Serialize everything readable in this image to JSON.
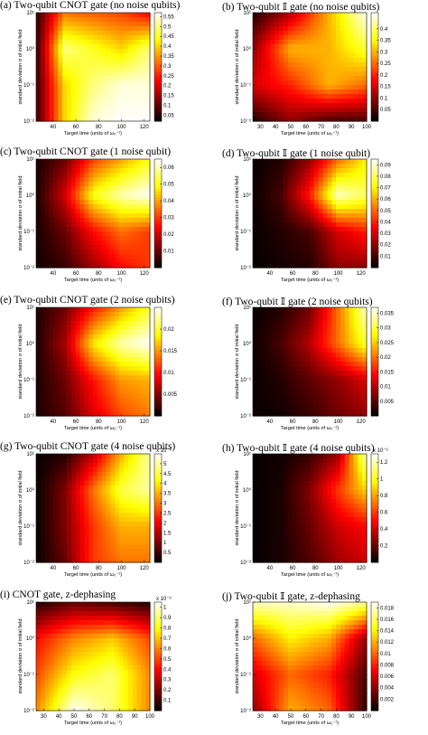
{
  "x_label": "Target time (units of ω₀⁻¹)",
  "y_label": "standard deviation σ of initial field",
  "y_ticks": [
    "10¹",
    "10⁰",
    "10⁻¹",
    "10⁻²"
  ],
  "colormap": "hot",
  "chart_data": [
    {
      "id": "a",
      "type": "heatmap",
      "title": "(a) Two-qubit CNOT gate (no noise qubits)",
      "x_ticks": [
        40,
        60,
        80,
        100,
        120
      ],
      "xlim": [
        25,
        125
      ],
      "colorbar_ticks": [
        "0.55",
        "0.5",
        "0.45",
        "0.4",
        "0.35",
        "0.3",
        "0.25",
        "0.2",
        "0.15",
        "0.1",
        "0.05"
      ],
      "clim": [
        0.02,
        0.57
      ],
      "colorbar_exponent": "",
      "x": [
        25,
        50,
        75,
        100,
        125
      ],
      "y": [
        10,
        1,
        0.1,
        0.01
      ],
      "z": [
        [
          0.05,
          0.32,
          0.3,
          0.28,
          0.22
        ],
        [
          0.05,
          0.5,
          0.45,
          0.4,
          0.5
        ],
        [
          0.06,
          0.4,
          0.5,
          0.55,
          0.55
        ],
        [
          0.06,
          0.4,
          0.55,
          0.57,
          0.57
        ]
      ]
    },
    {
      "id": "b",
      "type": "heatmap",
      "title": "(b) Two-qubit 𝕀 gate (no noise qubits)",
      "x_ticks": [
        30,
        40,
        50,
        60,
        70,
        80,
        90,
        100
      ],
      "xlim": [
        25,
        100
      ],
      "colorbar_ticks": [
        "0.4",
        "0.35",
        "0.3",
        "0.25",
        "0.2",
        "0.15",
        "0.1",
        "0.05"
      ],
      "clim": [
        0.0,
        0.47
      ],
      "colorbar_exponent": "",
      "x": [
        25,
        50,
        75,
        100
      ],
      "y": [
        10,
        1,
        0.1,
        0.01
      ],
      "z": [
        [
          0.02,
          0.12,
          0.3,
          0.47
        ],
        [
          0.1,
          0.3,
          0.3,
          0.38
        ],
        [
          0.15,
          0.2,
          0.3,
          0.25
        ],
        [
          0.02,
          0.1,
          0.05,
          0.05
        ]
      ]
    },
    {
      "id": "c",
      "type": "heatmap",
      "title": "(c) Two-qubit CNOT gate (1 noise qubit)",
      "x_ticks": [
        40,
        60,
        80,
        100,
        120
      ],
      "xlim": [
        25,
        125
      ],
      "colorbar_ticks": [
        "0.06",
        "0.05",
        "0.04",
        "0.03",
        "0.02",
        "0.01"
      ],
      "clim": [
        0.0,
        0.065
      ],
      "colorbar_exponent": "",
      "x": [
        25,
        50,
        75,
        100,
        125
      ],
      "y": [
        10,
        1,
        0.1,
        0.01
      ],
      "z": [
        [
          0.002,
          0.01,
          0.03,
          0.04,
          0.05
        ],
        [
          0.002,
          0.02,
          0.05,
          0.06,
          0.065
        ],
        [
          0.002,
          0.01,
          0.025,
          0.035,
          0.03
        ],
        [
          0.002,
          0.005,
          0.015,
          0.025,
          0.03
        ]
      ]
    },
    {
      "id": "d",
      "type": "heatmap",
      "title": "(d) Two-qubit 𝕀 gate (1 noise qubit)",
      "x_ticks": [
        40,
        60,
        80,
        100,
        120
      ],
      "xlim": [
        25,
        125
      ],
      "colorbar_ticks": [
        "0.09",
        "0.08",
        "0.07",
        "0.06",
        "0.05",
        "0.04",
        "0.03",
        "0.02",
        "0.01"
      ],
      "clim": [
        0.0,
        0.095
      ],
      "colorbar_exponent": "",
      "x": [
        25,
        50,
        75,
        100,
        125
      ],
      "y": [
        10,
        1,
        0.1,
        0.01
      ],
      "z": [
        [
          0.001,
          0.005,
          0.02,
          0.05,
          0.07
        ],
        [
          0.001,
          0.01,
          0.04,
          0.09,
          0.08
        ],
        [
          0.001,
          0.005,
          0.01,
          0.03,
          0.04
        ],
        [
          0.001,
          0.003,
          0.005,
          0.02,
          0.02
        ]
      ]
    },
    {
      "id": "e",
      "type": "heatmap",
      "title": "(e) Two-qubit CNOT gate (2 noise qubits)",
      "x_ticks": [
        40,
        60,
        80,
        100,
        120
      ],
      "xlim": [
        25,
        125
      ],
      "colorbar_ticks": [
        "0.02",
        "0.015",
        "0.01",
        "0.005"
      ],
      "clim": [
        0.0,
        0.025
      ],
      "colorbar_exponent": "",
      "x": [
        25,
        50,
        75,
        100,
        125
      ],
      "y": [
        10,
        1,
        0.1,
        0.01
      ],
      "z": [
        [
          0.001,
          0.004,
          0.01,
          0.015,
          0.02
        ],
        [
          0.001,
          0.006,
          0.018,
          0.023,
          0.025
        ],
        [
          0.001,
          0.004,
          0.01,
          0.015,
          0.016
        ],
        [
          0.001,
          0.003,
          0.008,
          0.012,
          0.014
        ]
      ]
    },
    {
      "id": "f",
      "type": "heatmap",
      "title": "(f) Two-qubit 𝕀 gate (2 noise qubits)",
      "x_ticks": [
        40,
        60,
        80,
        100,
        120
      ],
      "xlim": [
        25,
        125
      ],
      "colorbar_ticks": [
        "0.035",
        "0.03",
        "0.025",
        "0.02",
        "0.015",
        "0.01",
        "0.005"
      ],
      "clim": [
        0.0,
        0.037
      ],
      "colorbar_exponent": "",
      "x": [
        25,
        50,
        75,
        100,
        125
      ],
      "y": [
        10,
        1,
        0.1,
        0.01
      ],
      "z": [
        [
          0.0005,
          0.002,
          0.006,
          0.02,
          0.035
        ],
        [
          0.0005,
          0.004,
          0.01,
          0.02,
          0.03
        ],
        [
          0.0005,
          0.002,
          0.005,
          0.008,
          0.012
        ],
        [
          0.0005,
          0.001,
          0.003,
          0.006,
          0.008
        ]
      ]
    },
    {
      "id": "g",
      "type": "heatmap",
      "title": "(g) Two-qubit CNOT gate (4 noise qubits)",
      "x_ticks": [
        40,
        60,
        80,
        100,
        120
      ],
      "xlim": [
        25,
        125
      ],
      "colorbar_ticks": [
        "5",
        "4.5",
        "4",
        "3.5",
        "3",
        "2.5",
        "2",
        "1.5",
        "1",
        "0.5"
      ],
      "clim": [
        0.0,
        5.5
      ],
      "colorbar_exponent": "x 10⁻³",
      "x": [
        25,
        50,
        75,
        100,
        125
      ],
      "y": [
        10,
        1,
        0.1,
        0.01
      ],
      "z": [
        [
          0.05,
          0.3,
          1.5,
          3.5,
          5.0
        ],
        [
          0.05,
          1.0,
          3.0,
          4.5,
          5.0
        ],
        [
          0.05,
          1.0,
          2.5,
          3.5,
          3.5
        ],
        [
          0.05,
          0.8,
          2.5,
          3.0,
          3.0
        ]
      ]
    },
    {
      "id": "h",
      "type": "heatmap",
      "title": "(h) Two-qubit 𝕀 gate (4 noise qubits)",
      "x_ticks": [
        40,
        60,
        80,
        100,
        120
      ],
      "xlim": [
        25,
        125
      ],
      "colorbar_ticks": [
        "1.2",
        "1",
        "0.8",
        "0.6",
        "0.4",
        "0.2"
      ],
      "clim": [
        0.0,
        1.3
      ],
      "colorbar_exponent": "x 10⁻³",
      "x": [
        25,
        50,
        75,
        100,
        125
      ],
      "y": [
        10,
        1,
        0.1,
        0.01
      ],
      "z": [
        [
          0.01,
          0.03,
          0.1,
          0.3,
          1.25
        ],
        [
          0.01,
          0.05,
          0.25,
          0.6,
          0.9
        ],
        [
          0.01,
          0.05,
          0.2,
          0.4,
          0.5
        ],
        [
          0.01,
          0.05,
          0.15,
          0.3,
          0.4
        ]
      ]
    },
    {
      "id": "i",
      "type": "heatmap",
      "title": "(i) CNOT gate, z-dephasing",
      "x_ticks": [
        30,
        40,
        50,
        60,
        70,
        80,
        90,
        100
      ],
      "xlim": [
        25,
        100
      ],
      "colorbar_ticks": [
        "1",
        "0.9",
        "0.8",
        "0.7",
        "0.6",
        "0.5",
        "0.4",
        "0.3",
        "0.2",
        "0.1"
      ],
      "clim": [
        0.0,
        1.05
      ],
      "colorbar_exponent": "x 10⁻³",
      "x": [
        25,
        50,
        75,
        100
      ],
      "y": [
        10,
        1,
        0.1,
        0.01
      ],
      "z": [
        [
          0.05,
          0.15,
          0.1,
          0.05
        ],
        [
          0.4,
          0.6,
          0.7,
          0.5
        ],
        [
          0.5,
          0.8,
          0.9,
          0.6
        ],
        [
          0.6,
          1.05,
          0.9,
          0.6
        ]
      ]
    },
    {
      "id": "j",
      "type": "heatmap",
      "title": "(j) Two-qubit 𝕀 gate, z-dephasing",
      "x_ticks": [
        30,
        40,
        50,
        60,
        70,
        80,
        90,
        100
      ],
      "xlim": [
        25,
        100
      ],
      "colorbar_ticks": [
        "0.018",
        "0.016",
        "0.014",
        "0.012",
        "0.01",
        "0.008",
        "0.006",
        "0.004",
        "0.002"
      ],
      "clim": [
        0.0,
        0.019
      ],
      "colorbar_exponent": "",
      "x": [
        25,
        50,
        75,
        100
      ],
      "y": [
        10,
        1,
        0.1,
        0.01
      ],
      "z": [
        [
          0.018,
          0.018,
          0.019,
          0.017
        ],
        [
          0.01,
          0.014,
          0.012,
          0.004
        ],
        [
          0.006,
          0.01,
          0.008,
          0.002
        ],
        [
          0.004,
          0.012,
          0.01,
          0.001
        ]
      ]
    }
  ]
}
